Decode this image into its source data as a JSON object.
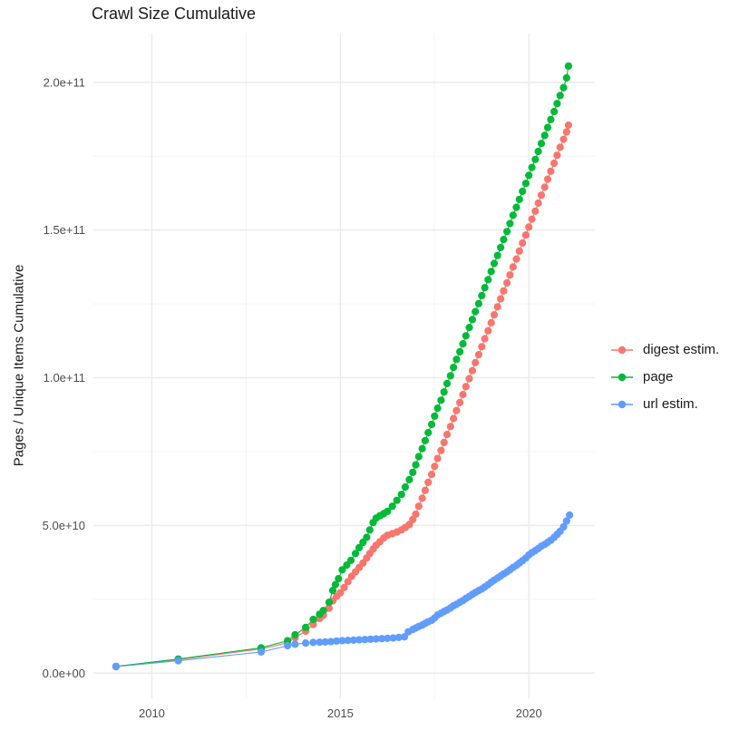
{
  "title": "Crawl Size Cumulative",
  "chart_data": {
    "type": "line",
    "title": "Crawl Size Cumulative",
    "xlabel": "",
    "ylabel": "Pages / Unique Items Cumulative",
    "legend_position": "right",
    "grid": "on",
    "background": "#ffffff",
    "grid_major_color": "#ebebeb",
    "grid_minor_color": "#f4f4f4",
    "tick_label_color": "#4d4d4d",
    "xlim": [
      2008.45,
      2021.75
    ],
    "ylim": [
      -8500000000.0,
      216500000000.0
    ],
    "x_ticks": [
      {
        "value": 2010,
        "label": "2010"
      },
      {
        "value": 2015,
        "label": "2015"
      },
      {
        "value": 2020,
        "label": "2020"
      }
    ],
    "x_minor_ticks": [
      2012.5,
      2017.5
    ],
    "y_ticks": [
      {
        "value": 0,
        "label": "0.0e+00"
      },
      {
        "value": 50000000000.0,
        "label": "5.0e+10"
      },
      {
        "value": 100000000000.0,
        "label": "1.0e+11"
      },
      {
        "value": 150000000000.0,
        "label": "1.5e+11"
      },
      {
        "value": 200000000000.0,
        "label": "2.0e+11"
      }
    ],
    "y_minor_ticks": [
      25000000000.0,
      75000000000.0,
      125000000000.0,
      175000000000.0
    ],
    "series": [
      {
        "name": "digest estim.",
        "color": "#F8766D",
        "points": [
          [
            2009.05,
            2200000000.0
          ],
          [
            2010.7,
            4600000000.0
          ],
          [
            2012.9,
            8200000000.0
          ],
          [
            2013.6,
            10300000000.0
          ],
          [
            2013.8,
            12000000000.0
          ],
          [
            2014.08,
            14200000000.0
          ],
          [
            2014.28,
            16500000000.0
          ],
          [
            2014.45,
            18500000000.0
          ],
          [
            2014.55,
            19600000000.0
          ],
          [
            2014.7,
            22000000000.0
          ],
          [
            2014.8,
            24500000000.0
          ],
          [
            2014.9,
            26000000000.0
          ],
          [
            2015.0,
            27200000000.0
          ],
          [
            2015.1,
            29000000000.0
          ],
          [
            2015.2,
            31000000000.0
          ],
          [
            2015.3,
            32800000000.0
          ],
          [
            2015.4,
            34300000000.0
          ],
          [
            2015.5,
            35800000000.0
          ],
          [
            2015.6,
            37300000000.0
          ],
          [
            2015.7,
            39000000000.0
          ],
          [
            2015.78,
            40500000000.0
          ],
          [
            2015.87,
            42000000000.0
          ],
          [
            2015.95,
            43300000000.0
          ],
          [
            2016.05,
            44500000000.0
          ],
          [
            2016.15,
            45800000000.0
          ],
          [
            2016.25,
            46700000000.0
          ],
          [
            2016.38,
            47200000000.0
          ],
          [
            2016.5,
            47800000000.0
          ],
          [
            2016.62,
            48500000000.0
          ],
          [
            2016.72,
            49300000000.0
          ],
          [
            2016.83,
            50300000000.0
          ],
          [
            2016.92,
            52000000000.0
          ],
          [
            2017.0,
            53800000000.0
          ],
          [
            2017.08,
            56500000000.0
          ],
          [
            2017.17,
            59200000000.0
          ],
          [
            2017.25,
            61900000000.0
          ],
          [
            2017.33,
            64600000000.0
          ],
          [
            2017.42,
            67300000000.0
          ],
          [
            2017.5,
            70000000000.0
          ],
          [
            2017.58,
            72700000000.0
          ],
          [
            2017.67,
            75400000000.0
          ],
          [
            2017.75,
            78100000000.0
          ],
          [
            2017.83,
            80800000000.0
          ],
          [
            2017.92,
            83500000000.0
          ],
          [
            2018.0,
            86200000000.0
          ],
          [
            2018.08,
            88900000000.0
          ],
          [
            2018.17,
            91600000000.0
          ],
          [
            2018.25,
            94300000000.0
          ],
          [
            2018.33,
            97000000000.0
          ],
          [
            2018.42,
            99700000000.0
          ],
          [
            2018.5,
            102400000000.0
          ],
          [
            2018.58,
            105100000000.0
          ],
          [
            2018.67,
            107800000000.0
          ],
          [
            2018.75,
            110500000000.0
          ],
          [
            2018.83,
            113200000000.0
          ],
          [
            2018.92,
            115900000000.0
          ],
          [
            2019.0,
            118600000000.0
          ],
          [
            2019.08,
            121300000000.0
          ],
          [
            2019.17,
            124000000000.0
          ],
          [
            2019.25,
            126700000000.0
          ],
          [
            2019.33,
            129400000000.0
          ],
          [
            2019.42,
            132100000000.0
          ],
          [
            2019.5,
            134800000000.0
          ],
          [
            2019.58,
            137500000000.0
          ],
          [
            2019.67,
            140200000000.0
          ],
          [
            2019.75,
            142900000000.0
          ],
          [
            2019.83,
            145600000000.0
          ],
          [
            2019.92,
            148300000000.0
          ],
          [
            2020.0,
            151000000000.0
          ],
          [
            2020.08,
            153700000000.0
          ],
          [
            2020.17,
            156400000000.0
          ],
          [
            2020.25,
            159100000000.0
          ],
          [
            2020.33,
            161800000000.0
          ],
          [
            2020.42,
            164500000000.0
          ],
          [
            2020.5,
            167200000000.0
          ],
          [
            2020.58,
            169900000000.0
          ],
          [
            2020.67,
            172600000000.0
          ],
          [
            2020.75,
            175300000000.0
          ],
          [
            2020.83,
            178000000000.0
          ],
          [
            2020.92,
            180700000000.0
          ],
          [
            2021.0,
            183200000000.0
          ],
          [
            2021.05,
            185500000000.0
          ]
        ]
      },
      {
        "name": "page",
        "color": "#00BA38",
        "points": [
          [
            2009.05,
            2300000000.0
          ],
          [
            2010.7,
            4800000000.0
          ],
          [
            2012.9,
            8600000000.0
          ],
          [
            2013.6,
            11000000000.0
          ],
          [
            2013.8,
            13000000000.0
          ],
          [
            2014.08,
            15500000000.0
          ],
          [
            2014.28,
            18200000000.0
          ],
          [
            2014.45,
            20000000000.0
          ],
          [
            2014.55,
            21200000000.0
          ],
          [
            2014.7,
            24000000000.0
          ],
          [
            2014.8,
            28000000000.0
          ],
          [
            2014.87,
            30000000000.0
          ],
          [
            2014.95,
            32000000000.0
          ],
          [
            2015.05,
            35000000000.0
          ],
          [
            2015.17,
            36600000000.0
          ],
          [
            2015.28,
            38200000000.0
          ],
          [
            2015.4,
            40500000000.0
          ],
          [
            2015.5,
            42500000000.0
          ],
          [
            2015.6,
            44300000000.0
          ],
          [
            2015.7,
            46000000000.0
          ],
          [
            2015.78,
            48500000000.0
          ],
          [
            2015.87,
            51000000000.0
          ],
          [
            2015.95,
            52500000000.0
          ],
          [
            2016.05,
            53300000000.0
          ],
          [
            2016.15,
            54000000000.0
          ],
          [
            2016.25,
            54800000000.0
          ],
          [
            2016.38,
            56500000000.0
          ],
          [
            2016.5,
            58500000000.0
          ],
          [
            2016.62,
            60500000000.0
          ],
          [
            2016.72,
            63000000000.0
          ],
          [
            2016.83,
            65500000000.0
          ],
          [
            2016.92,
            68000000000.0
          ],
          [
            2017.0,
            70500000000.0
          ],
          [
            2017.08,
            73300000000.0
          ],
          [
            2017.17,
            76000000000.0
          ],
          [
            2017.25,
            78700000000.0
          ],
          [
            2017.33,
            81400000000.0
          ],
          [
            2017.42,
            84200000000.0
          ],
          [
            2017.5,
            87000000000.0
          ],
          [
            2017.58,
            89700000000.0
          ],
          [
            2017.67,
            92400000000.0
          ],
          [
            2017.75,
            95200000000.0
          ],
          [
            2017.83,
            98000000000.0
          ],
          [
            2017.92,
            100700000000.0
          ],
          [
            2018.0,
            103500000000.0
          ],
          [
            2018.08,
            106200000000.0
          ],
          [
            2018.17,
            108800000000.0
          ],
          [
            2018.25,
            111500000000.0
          ],
          [
            2018.33,
            114200000000.0
          ],
          [
            2018.42,
            117000000000.0
          ],
          [
            2018.5,
            119700000000.0
          ],
          [
            2018.58,
            122400000000.0
          ],
          [
            2018.67,
            125100000000.0
          ],
          [
            2018.75,
            127800000000.0
          ],
          [
            2018.83,
            130500000000.0
          ],
          [
            2018.92,
            133200000000.0
          ],
          [
            2019.0,
            136000000000.0
          ],
          [
            2019.08,
            138700000000.0
          ],
          [
            2019.17,
            141400000000.0
          ],
          [
            2019.25,
            144100000000.0
          ],
          [
            2019.33,
            146800000000.0
          ],
          [
            2019.42,
            149500000000.0
          ],
          [
            2019.5,
            152200000000.0
          ],
          [
            2019.58,
            155000000000.0
          ],
          [
            2019.67,
            157700000000.0
          ],
          [
            2019.75,
            160400000000.0
          ],
          [
            2019.83,
            163100000000.0
          ],
          [
            2019.92,
            165800000000.0
          ],
          [
            2020.0,
            168500000000.0
          ],
          [
            2020.08,
            171200000000.0
          ],
          [
            2020.17,
            173900000000.0
          ],
          [
            2020.25,
            176600000000.0
          ],
          [
            2020.33,
            179300000000.0
          ],
          [
            2020.42,
            182000000000.0
          ],
          [
            2020.5,
            184700000000.0
          ],
          [
            2020.58,
            187400000000.0
          ],
          [
            2020.67,
            190100000000.0
          ],
          [
            2020.75,
            192800000000.0
          ],
          [
            2020.83,
            195500000000.0
          ],
          [
            2020.92,
            198200000000.0
          ],
          [
            2021.0,
            201500000000.0
          ],
          [
            2021.05,
            205500000000.0
          ]
        ]
      },
      {
        "name": "url estim.",
        "color": "#619CFF",
        "points": [
          [
            2009.05,
            2200000000.0
          ],
          [
            2010.7,
            4200000000.0
          ],
          [
            2012.9,
            7200000000.0
          ],
          [
            2013.6,
            9300000000.0
          ],
          [
            2013.8,
            9800000000.0
          ],
          [
            2014.08,
            10200000000.0
          ],
          [
            2014.28,
            10400000000.0
          ],
          [
            2014.45,
            10500000000.0
          ],
          [
            2014.6,
            10600000000.0
          ],
          [
            2014.75,
            10700000000.0
          ],
          [
            2014.9,
            10900000000.0
          ],
          [
            2015.05,
            11000000000.0
          ],
          [
            2015.2,
            11100000000.0
          ],
          [
            2015.35,
            11200000000.0
          ],
          [
            2015.5,
            11300000000.0
          ],
          [
            2015.65,
            11400000000.0
          ],
          [
            2015.8,
            11500000000.0
          ],
          [
            2015.95,
            11600000000.0
          ],
          [
            2016.1,
            11700000000.0
          ],
          [
            2016.25,
            11800000000.0
          ],
          [
            2016.4,
            11900000000.0
          ],
          [
            2016.55,
            12100000000.0
          ],
          [
            2016.7,
            12300000000.0
          ],
          [
            2016.8,
            14000000000.0
          ],
          [
            2016.92,
            14800000000.0
          ],
          [
            2017.0,
            15300000000.0
          ],
          [
            2017.08,
            15800000000.0
          ],
          [
            2017.17,
            16300000000.0
          ],
          [
            2017.25,
            16900000000.0
          ],
          [
            2017.33,
            17400000000.0
          ],
          [
            2017.42,
            17900000000.0
          ],
          [
            2017.5,
            18700000000.0
          ],
          [
            2017.58,
            19700000000.0
          ],
          [
            2017.67,
            20300000000.0
          ],
          [
            2017.75,
            20900000000.0
          ],
          [
            2017.83,
            21400000000.0
          ],
          [
            2017.92,
            22100000000.0
          ],
          [
            2018.0,
            22800000000.0
          ],
          [
            2018.08,
            23300000000.0
          ],
          [
            2018.17,
            24000000000.0
          ],
          [
            2018.25,
            24600000000.0
          ],
          [
            2018.33,
            25300000000.0
          ],
          [
            2018.42,
            26000000000.0
          ],
          [
            2018.5,
            26700000000.0
          ],
          [
            2018.58,
            27300000000.0
          ],
          [
            2018.67,
            28000000000.0
          ],
          [
            2018.75,
            28500000000.0
          ],
          [
            2018.83,
            29200000000.0
          ],
          [
            2018.92,
            30000000000.0
          ],
          [
            2019.0,
            30800000000.0
          ],
          [
            2019.08,
            31500000000.0
          ],
          [
            2019.17,
            32200000000.0
          ],
          [
            2019.25,
            32900000000.0
          ],
          [
            2019.33,
            33600000000.0
          ],
          [
            2019.42,
            34300000000.0
          ],
          [
            2019.5,
            35000000000.0
          ],
          [
            2019.58,
            35800000000.0
          ],
          [
            2019.67,
            36500000000.0
          ],
          [
            2019.75,
            37300000000.0
          ],
          [
            2019.83,
            38100000000.0
          ],
          [
            2019.92,
            39000000000.0
          ],
          [
            2020.0,
            40000000000.0
          ],
          [
            2020.08,
            40800000000.0
          ],
          [
            2020.17,
            41500000000.0
          ],
          [
            2020.25,
            42200000000.0
          ],
          [
            2020.33,
            43000000000.0
          ],
          [
            2020.42,
            43600000000.0
          ],
          [
            2020.5,
            44300000000.0
          ],
          [
            2020.58,
            45000000000.0
          ],
          [
            2020.67,
            46000000000.0
          ],
          [
            2020.75,
            47000000000.0
          ],
          [
            2020.83,
            48000000000.0
          ],
          [
            2020.92,
            49500000000.0
          ],
          [
            2021.0,
            51500000000.0
          ],
          [
            2021.08,
            53500000000.0
          ]
        ]
      }
    ]
  }
}
